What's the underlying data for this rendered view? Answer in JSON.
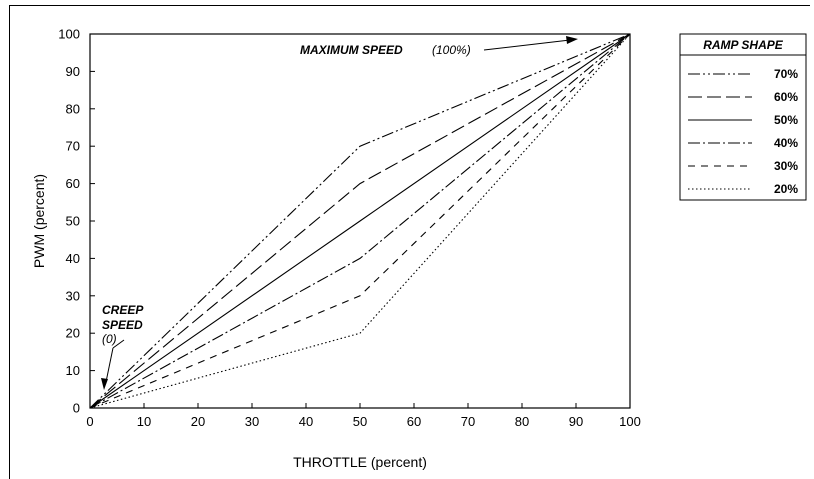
{
  "chart_data": {
    "type": "line",
    "title": "",
    "xlabel": "THROTTLE  (percent)",
    "ylabel": "PWM  (percent)",
    "xlim": [
      0,
      100
    ],
    "ylim": [
      0,
      100
    ],
    "xticks": [
      "0",
      "10",
      "20",
      "30",
      "40",
      "50",
      "60",
      "70",
      "80",
      "90",
      "100"
    ],
    "yticks": [
      "0",
      "10",
      "20",
      "30",
      "40",
      "50",
      "60",
      "70",
      "80",
      "90",
      "100"
    ],
    "grid": false,
    "legend": {
      "title": "RAMP SHAPE",
      "placement": "right",
      "entries": [
        "70%",
        "60%",
        "50%",
        "40%",
        "30%",
        "20%"
      ]
    },
    "series": [
      {
        "name": "70%",
        "style": "dash-dot-dot",
        "x": [
          0,
          50,
          100
        ],
        "y": [
          0,
          70,
          100
        ]
      },
      {
        "name": "60%",
        "style": "long-dash",
        "x": [
          0,
          50,
          100
        ],
        "y": [
          0,
          60,
          100
        ]
      },
      {
        "name": "50%",
        "style": "solid",
        "x": [
          0,
          50,
          100
        ],
        "y": [
          0,
          50,
          100
        ]
      },
      {
        "name": "40%",
        "style": "dash-dot",
        "x": [
          0,
          50,
          100
        ],
        "y": [
          0,
          40,
          100
        ]
      },
      {
        "name": "30%",
        "style": "dashed",
        "x": [
          0,
          50,
          100
        ],
        "y": [
          0,
          30,
          100
        ]
      },
      {
        "name": "20%",
        "style": "dotted",
        "x": [
          0,
          50,
          100
        ],
        "y": [
          0,
          20,
          100
        ]
      }
    ],
    "annotations": {
      "max_speed_label": "MAXIMUM SPEED",
      "max_speed_value": "(100%)",
      "creep_label_1": "CREEP",
      "creep_label_2": "SPEED",
      "creep_value": "(0)"
    }
  }
}
